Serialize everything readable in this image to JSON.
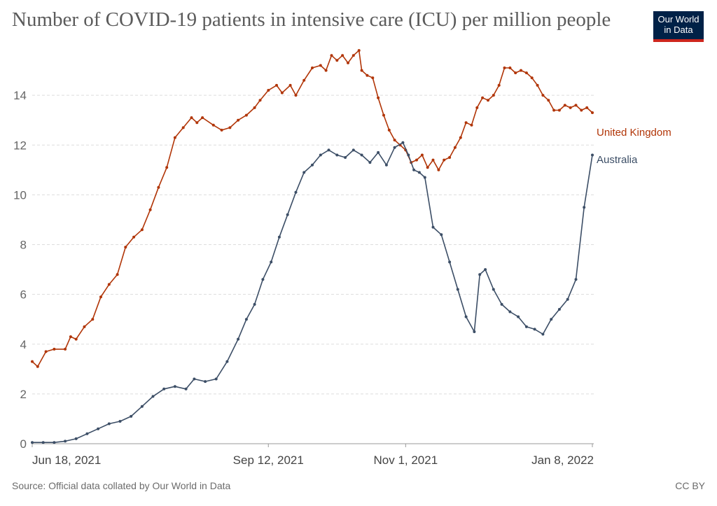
{
  "header": {
    "title": "Number of COVID-19 patients in intensive care (ICU) per million people",
    "logo_line1": "Our World",
    "logo_line2": "in Data"
  },
  "footer": {
    "source": "Source: Official data collated by Our World in Data",
    "license": "CC BY"
  },
  "colors": {
    "united_kingdom": "#b13507",
    "australia": "#3c4e66",
    "grid": "#dddddd"
  },
  "chart_data": {
    "type": "line",
    "title": "Number of COVID-19 patients in intensive care (ICU) per million people",
    "xlabel": "",
    "ylabel": "",
    "x_start": "2021-06-18",
    "x_end": "2022-01-08",
    "xlim": [
      "2021-06-18",
      "2022-01-08"
    ],
    "ylim": [
      0,
      16
    ],
    "y_ticks": [
      0,
      2,
      4,
      6,
      8,
      10,
      12,
      14
    ],
    "x_ticks": [
      {
        "date": "2021-06-18",
        "label": "Jun 18, 2021"
      },
      {
        "date": "2021-09-12",
        "label": "Sep 12, 2021"
      },
      {
        "date": "2021-11-01",
        "label": "Nov 1, 2021"
      },
      {
        "date": "2022-01-08",
        "label": "Jan 8, 2022"
      }
    ],
    "grid": "horizontal dashed",
    "legend": "inline labels at right end of lines",
    "series": [
      {
        "name": "United Kingdom",
        "color": "#b13507",
        "points": [
          [
            "2021-06-18",
            3.3
          ],
          [
            "2021-06-20",
            3.1
          ],
          [
            "2021-06-23",
            3.7
          ],
          [
            "2021-06-26",
            3.8
          ],
          [
            "2021-06-30",
            3.8
          ],
          [
            "2021-07-02",
            4.3
          ],
          [
            "2021-07-04",
            4.2
          ],
          [
            "2021-07-07",
            4.7
          ],
          [
            "2021-07-10",
            5.0
          ],
          [
            "2021-07-13",
            5.9
          ],
          [
            "2021-07-16",
            6.4
          ],
          [
            "2021-07-19",
            6.8
          ],
          [
            "2021-07-22",
            7.9
          ],
          [
            "2021-07-25",
            8.3
          ],
          [
            "2021-07-28",
            8.6
          ],
          [
            "2021-07-31",
            9.4
          ],
          [
            "2021-08-03",
            10.3
          ],
          [
            "2021-08-06",
            11.1
          ],
          [
            "2021-08-09",
            12.3
          ],
          [
            "2021-08-12",
            12.7
          ],
          [
            "2021-08-15",
            13.1
          ],
          [
            "2021-08-17",
            12.9
          ],
          [
            "2021-08-19",
            13.1
          ],
          [
            "2021-08-23",
            12.8
          ],
          [
            "2021-08-26",
            12.6
          ],
          [
            "2021-08-29",
            12.7
          ],
          [
            "2021-09-01",
            13.0
          ],
          [
            "2021-09-04",
            13.2
          ],
          [
            "2021-09-07",
            13.5
          ],
          [
            "2021-09-09",
            13.8
          ],
          [
            "2021-09-12",
            14.2
          ],
          [
            "2021-09-15",
            14.4
          ],
          [
            "2021-09-17",
            14.1
          ],
          [
            "2021-09-20",
            14.4
          ],
          [
            "2021-09-22",
            14.0
          ],
          [
            "2021-09-25",
            14.6
          ],
          [
            "2021-09-28",
            15.1
          ],
          [
            "2021-10-01",
            15.2
          ],
          [
            "2021-10-03",
            15.0
          ],
          [
            "2021-10-05",
            15.6
          ],
          [
            "2021-10-07",
            15.4
          ],
          [
            "2021-10-09",
            15.6
          ],
          [
            "2021-10-11",
            15.3
          ],
          [
            "2021-10-13",
            15.6
          ],
          [
            "2021-10-15",
            15.8
          ],
          [
            "2021-10-16",
            15.0
          ],
          [
            "2021-10-18",
            14.8
          ],
          [
            "2021-10-20",
            14.7
          ],
          [
            "2021-10-22",
            13.9
          ],
          [
            "2021-10-24",
            13.2
          ],
          [
            "2021-10-26",
            12.6
          ],
          [
            "2021-10-28",
            12.2
          ],
          [
            "2021-10-30",
            12.0
          ],
          [
            "2021-11-01",
            11.8
          ],
          [
            "2021-11-03",
            11.3
          ],
          [
            "2021-11-05",
            11.4
          ],
          [
            "2021-11-07",
            11.6
          ],
          [
            "2021-11-09",
            11.1
          ],
          [
            "2021-11-11",
            11.4
          ],
          [
            "2021-11-13",
            11.0
          ],
          [
            "2021-11-15",
            11.4
          ],
          [
            "2021-11-17",
            11.5
          ],
          [
            "2021-11-19",
            11.9
          ],
          [
            "2021-11-21",
            12.3
          ],
          [
            "2021-11-23",
            12.9
          ],
          [
            "2021-11-25",
            12.8
          ],
          [
            "2021-11-27",
            13.5
          ],
          [
            "2021-11-29",
            13.9
          ],
          [
            "2021-12-01",
            13.8
          ],
          [
            "2021-12-03",
            14.0
          ],
          [
            "2021-12-05",
            14.4
          ],
          [
            "2021-12-07",
            15.1
          ],
          [
            "2021-12-09",
            15.1
          ],
          [
            "2021-12-11",
            14.9
          ],
          [
            "2021-12-13",
            15.0
          ],
          [
            "2021-12-15",
            14.9
          ],
          [
            "2021-12-17",
            14.7
          ],
          [
            "2021-12-19",
            14.4
          ],
          [
            "2021-12-21",
            14.0
          ],
          [
            "2021-12-23",
            13.8
          ],
          [
            "2021-12-25",
            13.4
          ],
          [
            "2021-12-27",
            13.4
          ],
          [
            "2021-12-29",
            13.6
          ],
          [
            "2021-12-31",
            13.5
          ],
          [
            "2022-01-02",
            13.6
          ],
          [
            "2022-01-04",
            13.4
          ],
          [
            "2022-01-06",
            13.5
          ],
          [
            "2022-01-08",
            13.3
          ]
        ]
      },
      {
        "name": "Australia",
        "color": "#3c4e66",
        "points": [
          [
            "2021-06-18",
            0.05
          ],
          [
            "2021-06-22",
            0.05
          ],
          [
            "2021-06-26",
            0.05
          ],
          [
            "2021-06-30",
            0.1
          ],
          [
            "2021-07-04",
            0.2
          ],
          [
            "2021-07-08",
            0.4
          ],
          [
            "2021-07-12",
            0.6
          ],
          [
            "2021-07-16",
            0.8
          ],
          [
            "2021-07-20",
            0.9
          ],
          [
            "2021-07-24",
            1.1
          ],
          [
            "2021-07-28",
            1.5
          ],
          [
            "2021-08-01",
            1.9
          ],
          [
            "2021-08-05",
            2.2
          ],
          [
            "2021-08-09",
            2.3
          ],
          [
            "2021-08-13",
            2.2
          ],
          [
            "2021-08-16",
            2.6
          ],
          [
            "2021-08-20",
            2.5
          ],
          [
            "2021-08-24",
            2.6
          ],
          [
            "2021-08-28",
            3.3
          ],
          [
            "2021-09-01",
            4.2
          ],
          [
            "2021-09-04",
            5.0
          ],
          [
            "2021-09-07",
            5.6
          ],
          [
            "2021-09-10",
            6.6
          ],
          [
            "2021-09-13",
            7.3
          ],
          [
            "2021-09-16",
            8.3
          ],
          [
            "2021-09-19",
            9.2
          ],
          [
            "2021-09-22",
            10.1
          ],
          [
            "2021-09-25",
            10.9
          ],
          [
            "2021-09-28",
            11.2
          ],
          [
            "2021-10-01",
            11.6
          ],
          [
            "2021-10-04",
            11.8
          ],
          [
            "2021-10-07",
            11.6
          ],
          [
            "2021-10-10",
            11.5
          ],
          [
            "2021-10-13",
            11.8
          ],
          [
            "2021-10-16",
            11.6
          ],
          [
            "2021-10-19",
            11.3
          ],
          [
            "2021-10-22",
            11.7
          ],
          [
            "2021-10-25",
            11.2
          ],
          [
            "2021-10-28",
            11.9
          ],
          [
            "2021-10-31",
            12.1
          ],
          [
            "2021-11-02",
            11.6
          ],
          [
            "2021-11-04",
            11.0
          ],
          [
            "2021-11-06",
            10.9
          ],
          [
            "2021-11-08",
            10.7
          ],
          [
            "2021-11-11",
            8.7
          ],
          [
            "2021-11-14",
            8.4
          ],
          [
            "2021-11-17",
            7.3
          ],
          [
            "2021-11-20",
            6.2
          ],
          [
            "2021-11-23",
            5.1
          ],
          [
            "2021-11-26",
            4.5
          ],
          [
            "2021-11-28",
            6.8
          ],
          [
            "2021-11-30",
            7.0
          ],
          [
            "2021-12-03",
            6.2
          ],
          [
            "2021-12-06",
            5.6
          ],
          [
            "2021-12-09",
            5.3
          ],
          [
            "2021-12-12",
            5.1
          ],
          [
            "2021-12-15",
            4.7
          ],
          [
            "2021-12-18",
            4.6
          ],
          [
            "2021-12-21",
            4.4
          ],
          [
            "2021-12-24",
            5.0
          ],
          [
            "2021-12-27",
            5.4
          ],
          [
            "2021-12-30",
            5.8
          ],
          [
            "2022-01-02",
            6.6
          ],
          [
            "2022-01-05",
            9.5
          ],
          [
            "2022-01-08",
            11.6
          ]
        ]
      }
    ]
  }
}
